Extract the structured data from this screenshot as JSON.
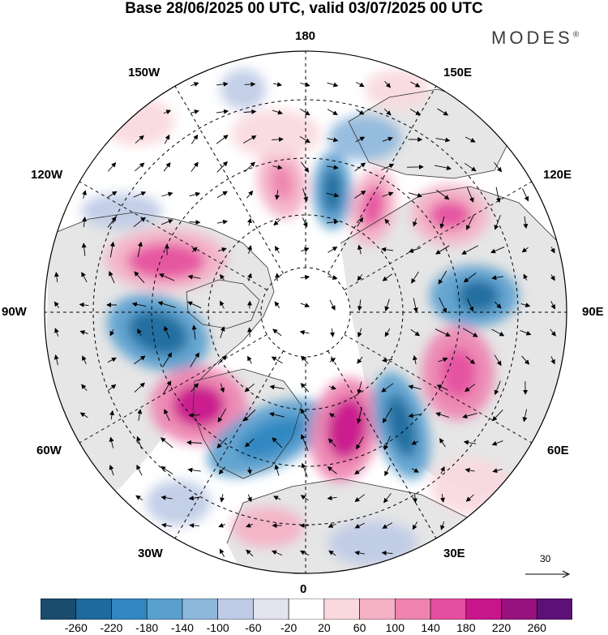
{
  "title": "Base 28/06/2025 00 UTC, valid 03/07/2025 00 UTC",
  "brand": "MODES",
  "brand_mark": "®",
  "map": {
    "projection": "north polar stereographic",
    "lon_labels": {
      "top": "180",
      "bottom": "0",
      "left": "90W",
      "right": "90E",
      "upper_left_1": "150W",
      "upper_left_2": "120W",
      "upper_right_1": "150E",
      "upper_right_2": "120E",
      "lower_left_1": "60W",
      "lower_left_2": "30W",
      "lower_right_1": "60E",
      "lower_right_2": "30E"
    },
    "colors": {
      "land": "#e6e6e6",
      "ocean": "#ffffff",
      "coast": "#333333",
      "grid": "#000000"
    }
  },
  "vector_scale": {
    "label": "30"
  },
  "colorbar": {
    "colors": [
      "#1a4c6e",
      "#1f6a9c",
      "#3187c0",
      "#5aa0cf",
      "#8eb7dc",
      "#bfcbe6",
      "#e3e3f0",
      "#ffffff",
      "#f9d9de",
      "#f4b1c5",
      "#ee83b0",
      "#e54f9f",
      "#c8168b",
      "#97127f",
      "#5d1078"
    ],
    "ticks": [
      "-260",
      "-220",
      "-180",
      "-140",
      "-100",
      "-60",
      "-20",
      "20",
      "60",
      "100",
      "140",
      "180",
      "220",
      "260"
    ]
  }
}
